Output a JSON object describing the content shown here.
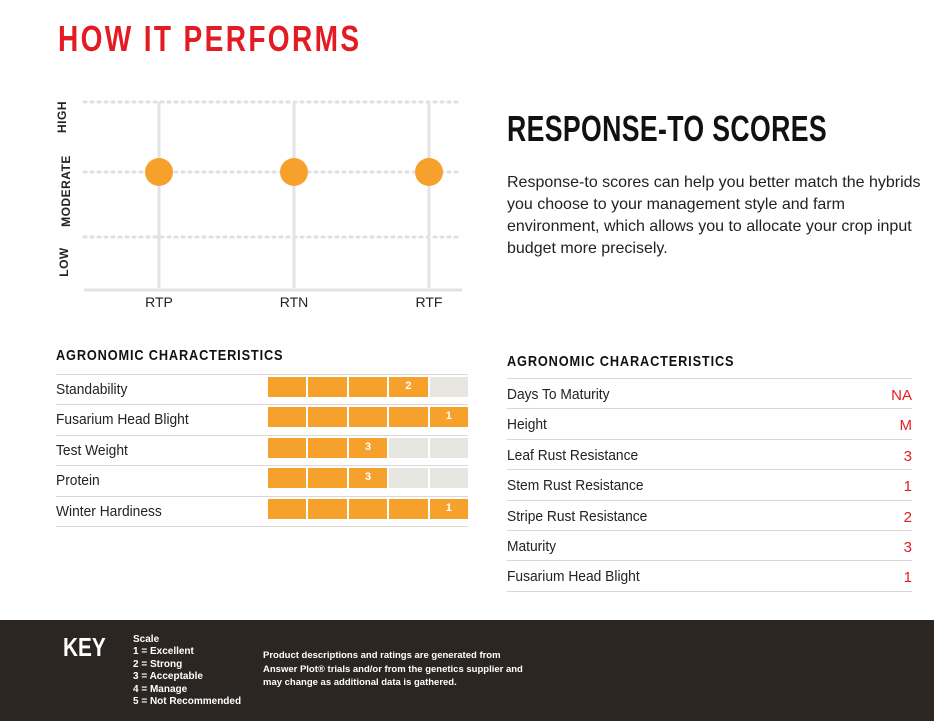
{
  "page_title": "HOW IT PERFORMS",
  "chart_data": {
    "type": "scatter",
    "categories": [
      "RTP",
      "RTN",
      "RTF"
    ],
    "y_levels": [
      "LOW",
      "MODERATE",
      "HIGH"
    ],
    "values": [
      "MODERATE",
      "MODERATE",
      "MODERATE"
    ],
    "colors": {
      "point": "#f6a12b",
      "grid": "#e3e3e3"
    }
  },
  "response_to": {
    "heading": "RESPONSE-TO SCORES",
    "description": "Response-to scores can help you better match the hybrids you choose to your management style and farm environment, which allows you to allocate your crop input budget more precisely."
  },
  "left_characteristics": {
    "title": "AGRONOMIC CHARACTERISTICS",
    "rows": [
      {
        "label": "Standability",
        "rating": "2",
        "filled": 4
      },
      {
        "label": "Fusarium Head Blight",
        "rating": "1",
        "filled": 5
      },
      {
        "label": "Test Weight",
        "rating": "3",
        "filled": 3
      },
      {
        "label": "Protein",
        "rating": "3",
        "filled": 3
      },
      {
        "label": "Winter Hardiness",
        "rating": "1",
        "filled": 5
      }
    ]
  },
  "right_characteristics": {
    "title": "AGRONOMIC CHARACTERISTICS",
    "rows": [
      {
        "label": "Days To Maturity",
        "value": "NA"
      },
      {
        "label": "Height",
        "value": "M"
      },
      {
        "label": "Leaf Rust Resistance",
        "value": "3"
      },
      {
        "label": "Stem Rust Resistance",
        "value": "1"
      },
      {
        "label": "Stripe Rust Resistance",
        "value": "2"
      },
      {
        "label": "Maturity",
        "value": "3"
      },
      {
        "label": "Fusarium Head Blight",
        "value": "1"
      }
    ]
  },
  "footer": {
    "key_title": "KEY",
    "scale_title": "Scale",
    "scale_items": [
      "1 = Excellent",
      "2 = Strong",
      "3 = Acceptable",
      "4 = Manage",
      "5 = Not Recommended"
    ],
    "disclaimer": "Product descriptions and ratings are generated from Answer Plot® trials and/or from the genetics supplier and may change as additional data is gathered."
  },
  "colors": {
    "accent_red": "#e31b23",
    "bar_orange": "#f6a12b",
    "bar_empty": "#e8e6e1",
    "footer_bg": "#2b2622"
  }
}
